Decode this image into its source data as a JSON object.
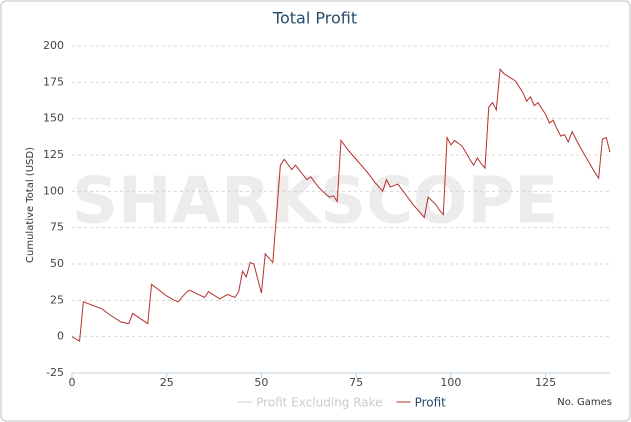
{
  "chart_data": {
    "type": "line",
    "title": "Total Profit",
    "watermark": "SHARKSCOPE",
    "y_label": "Cumulative Total (USD)",
    "x_label": "No. Games",
    "xlim": [
      0,
      142
    ],
    "ylim": [
      -25,
      200
    ],
    "xticks": [
      0,
      25,
      50,
      75,
      100,
      125
    ],
    "yticks": [
      -25,
      0,
      25,
      50,
      75,
      100,
      125,
      150,
      175,
      200
    ],
    "grid": true,
    "legend": "bottom",
    "series": [
      {
        "name": "Profit Excluding Rake",
        "color": "#cccccc",
        "visible": false,
        "x": [],
        "values": []
      },
      {
        "name": "Profit",
        "color": "#b5302d",
        "visible": true,
        "x": [
          0,
          2,
          3,
          8,
          10,
          13,
          15,
          16,
          20,
          21,
          23,
          25,
          27,
          28,
          30,
          31,
          35,
          36,
          39,
          41,
          43,
          44,
          45,
          46,
          47,
          48,
          50,
          51,
          53,
          55,
          56,
          58,
          59,
          62,
          63,
          65,
          67,
          68,
          69,
          70,
          71,
          73,
          75,
          78,
          80,
          82,
          83,
          84,
          86,
          88,
          90,
          93,
          94,
          96,
          97,
          98,
          99,
          100,
          101,
          103,
          105,
          106,
          107,
          108,
          109,
          110,
          111,
          112,
          113,
          114,
          117,
          119,
          120,
          121,
          122,
          123,
          125,
          126,
          127,
          128,
          129,
          130,
          131,
          132,
          134,
          136,
          138,
          139,
          140,
          141,
          142
        ],
        "values": [
          0,
          -3,
          24,
          19,
          15,
          10,
          9,
          16,
          9,
          36,
          32,
          28,
          25,
          24,
          30,
          32,
          27,
          31,
          26,
          29,
          27,
          31,
          45,
          41,
          51,
          50,
          30,
          57,
          51,
          118,
          122,
          115,
          118,
          108,
          110,
          103,
          98,
          96,
          97,
          93,
          135,
          128,
          122,
          113,
          106,
          100,
          108,
          103,
          105,
          98,
          91,
          82,
          96,
          91,
          87,
          84,
          137,
          132,
          135,
          131,
          122,
          118,
          123,
          119,
          116,
          158,
          161,
          156,
          184,
          181,
          176,
          168,
          162,
          165,
          159,
          161,
          153,
          147,
          149,
          143,
          138,
          139,
          134,
          141,
          131,
          122,
          113,
          109,
          136,
          137,
          127
        ]
      }
    ]
  }
}
